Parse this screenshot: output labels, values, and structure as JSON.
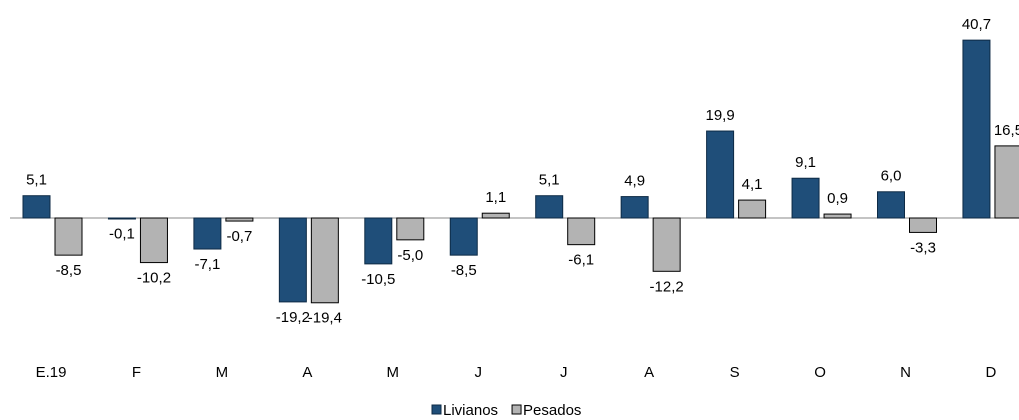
{
  "chart_data": {
    "type": "bar",
    "categories": [
      "E.19",
      "F",
      "M",
      "A",
      "M",
      "J",
      "J",
      "A",
      "S",
      "O",
      "N",
      "D"
    ],
    "series": [
      {
        "name": "Livianos",
        "color": "#1f4e79",
        "values": [
          5.1,
          -0.1,
          -7.1,
          -19.2,
          -10.5,
          -8.5,
          5.1,
          4.9,
          19.9,
          9.1,
          6.0,
          40.7
        ],
        "value_labels": [
          "5,1",
          "-0,1",
          "-7,1",
          "-19,2",
          "-10,5",
          "-8,5",
          "5,1",
          "4,9",
          "19,9",
          "9,1",
          "6,0",
          "40,7"
        ]
      },
      {
        "name": "Pesados",
        "color": "#b3b3b3",
        "values": [
          -8.5,
          -10.2,
          -0.7,
          -19.4,
          -5.0,
          1.1,
          -6.1,
          -12.2,
          4.1,
          0.9,
          -3.3,
          16.5
        ],
        "value_labels": [
          "-8,5",
          "-10,2",
          "-0,7",
          "-19,4",
          "-5,0",
          "1,1",
          "-6,1",
          "-12,2",
          "4,1",
          "0,9",
          "-3,3",
          "16,5"
        ]
      }
    ],
    "legend": "bottom"
  }
}
